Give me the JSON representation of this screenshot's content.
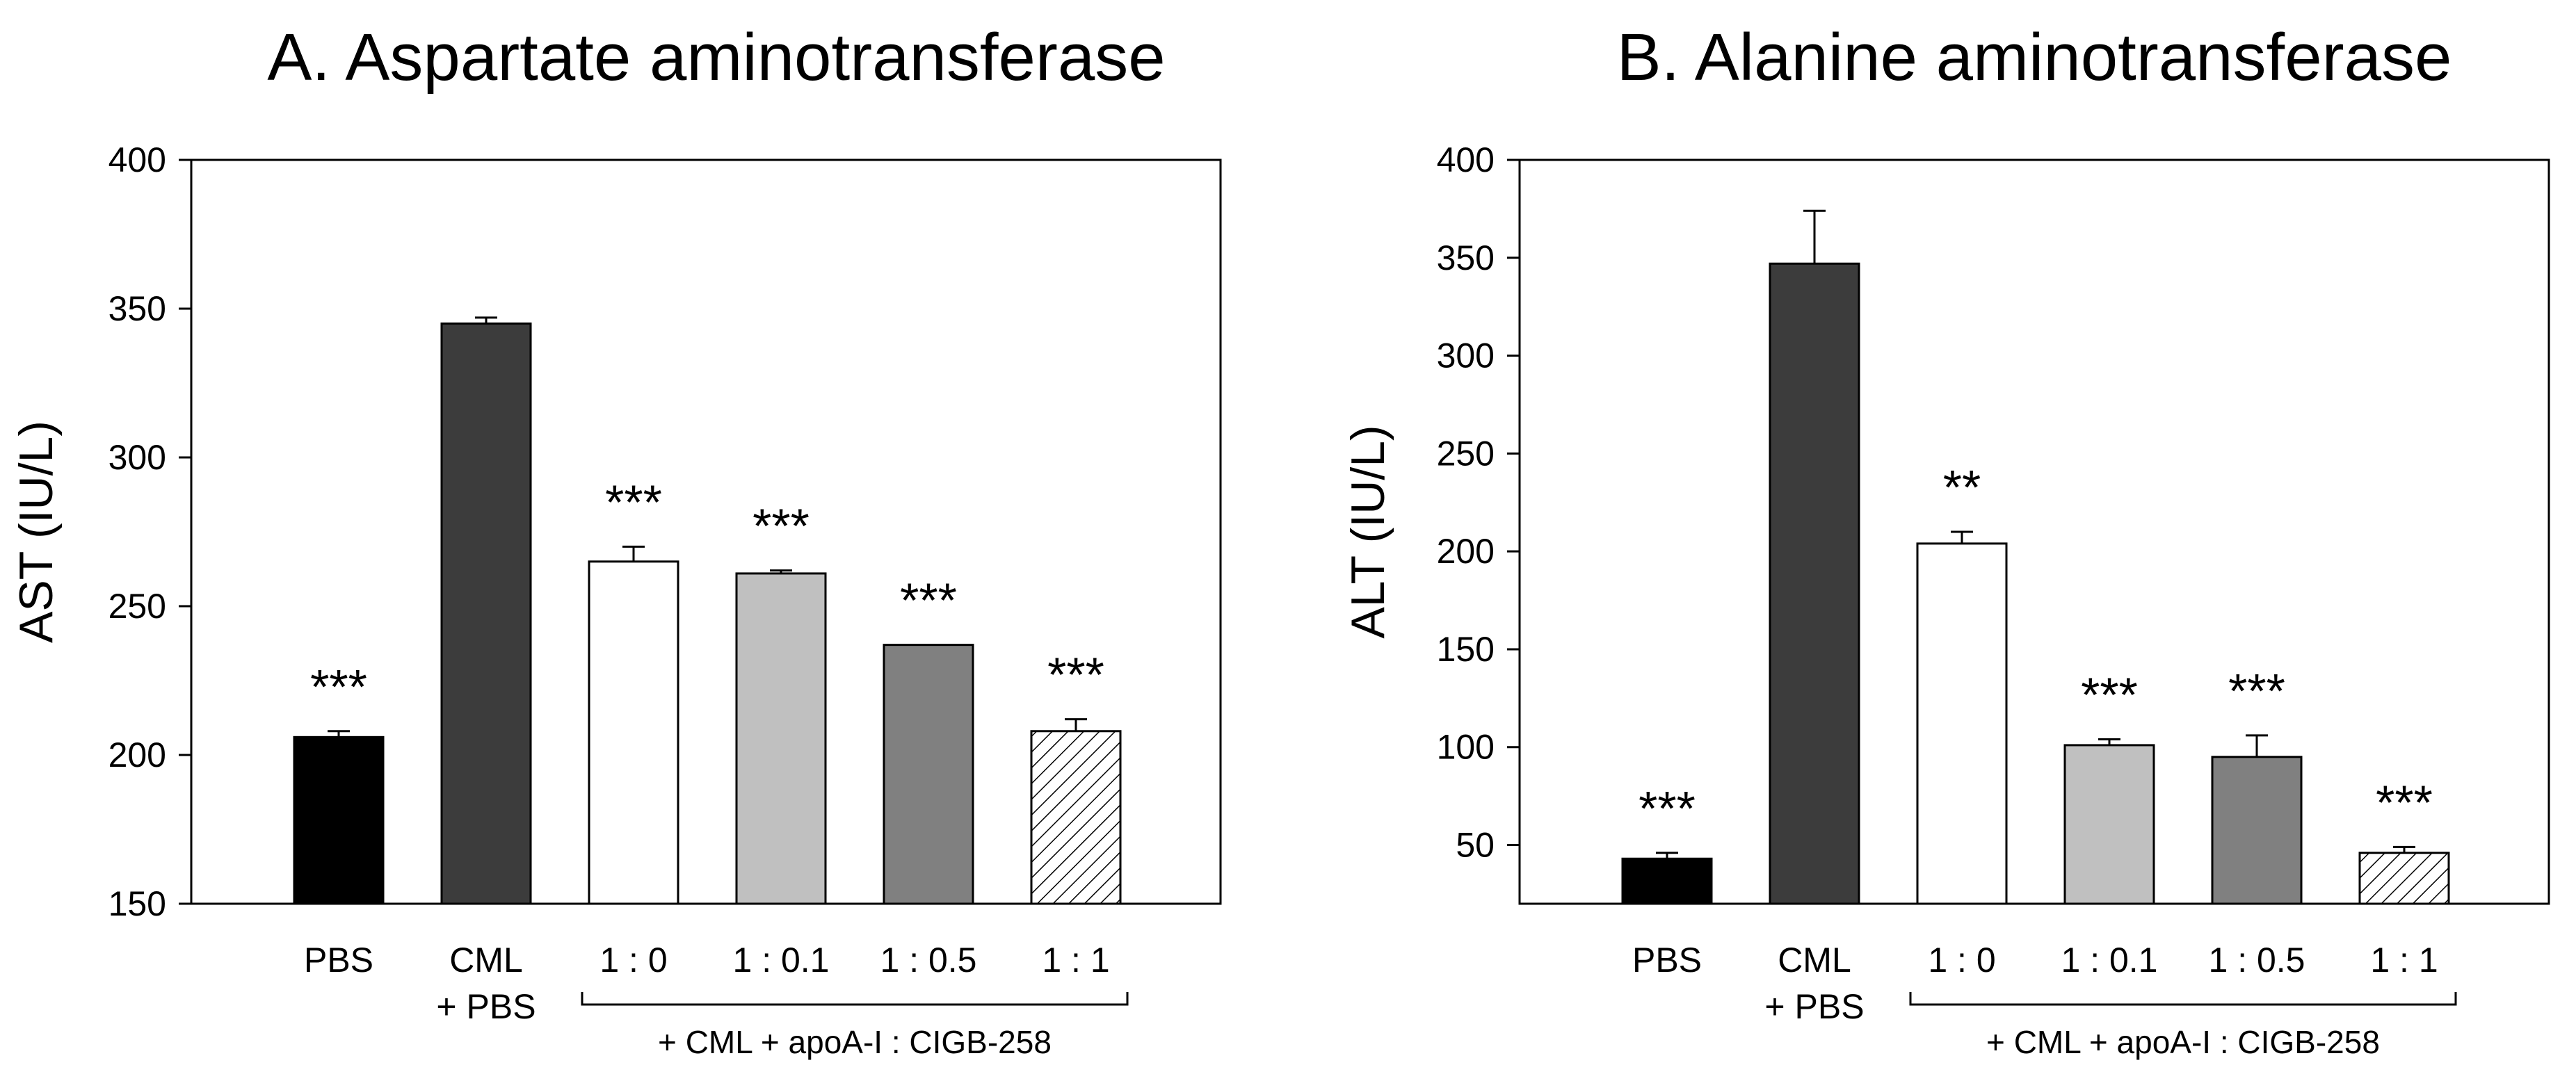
{
  "figure": {
    "palette": {
      "PBS": "#000000",
      "CML + PBS": "#3c3c3c",
      "1 : 0": "#ffffff",
      "1 : 0.1": "#c0c0c0",
      "1 : 0.5": "#808080",
      "1 : 1": "hatch"
    }
  },
  "chart_data": [
    {
      "type": "bar",
      "title": "A. Aspartate aminotransferase",
      "xlabel": "",
      "ylabel": "AST (IU/L)",
      "ylim": [
        150,
        400
      ],
      "yticks": [
        150,
        200,
        250,
        300,
        350,
        400
      ],
      "categories": [
        {
          "line1": "PBS",
          "line2": ""
        },
        {
          "line1": "CML",
          "line2": "+ PBS"
        },
        {
          "line1": "1 : 0",
          "line2": ""
        },
        {
          "line1": "1 : 0.1",
          "line2": ""
        },
        {
          "line1": "1 : 0.5",
          "line2": ""
        },
        {
          "line1": "1 : 1",
          "line2": ""
        }
      ],
      "values": [
        206,
        345,
        265,
        261,
        237,
        208
      ],
      "errors": [
        2,
        2,
        5,
        1,
        0,
        4
      ],
      "significance": [
        "***",
        "",
        "***",
        "***",
        "***",
        "***"
      ],
      "group_label": "+ CML + apoA-I : CIGB-258",
      "group_span": [
        2,
        5
      ]
    },
    {
      "type": "bar",
      "title": "B. Alanine aminotransferase",
      "xlabel": "",
      "ylabel": "ALT (IU/L)",
      "ylim": [
        20,
        400
      ],
      "yticks": [
        50,
        100,
        150,
        200,
        250,
        300,
        350,
        400
      ],
      "categories": [
        {
          "line1": "PBS",
          "line2": ""
        },
        {
          "line1": "CML",
          "line2": "+ PBS"
        },
        {
          "line1": "1 : 0",
          "line2": ""
        },
        {
          "line1": "1 : 0.1",
          "line2": ""
        },
        {
          "line1": "1 : 0.5",
          "line2": ""
        },
        {
          "line1": "1 : 1",
          "line2": ""
        }
      ],
      "values": [
        43,
        347,
        204,
        101,
        95,
        46
      ],
      "errors": [
        3,
        27,
        6,
        3,
        11,
        3
      ],
      "significance": [
        "***",
        "",
        "**",
        "***",
        "***",
        "***"
      ],
      "group_label": "+ CML + apoA-I : CIGB-258",
      "group_span": [
        2,
        5
      ]
    }
  ]
}
